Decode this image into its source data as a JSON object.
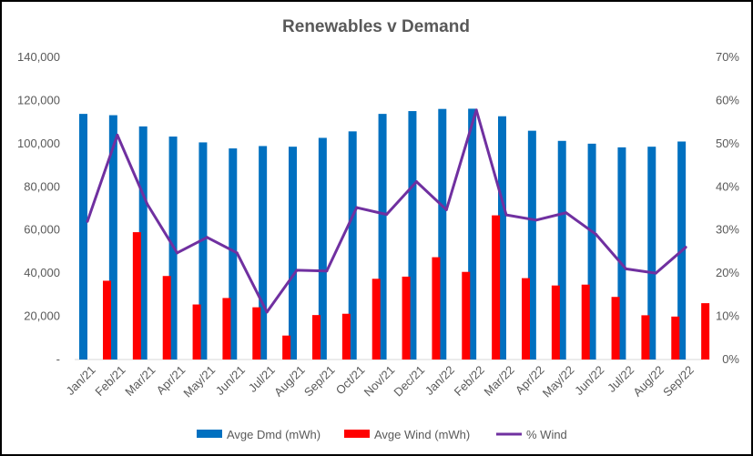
{
  "chart_data": {
    "type": "bar",
    "title": "Renewables v Demand",
    "categories": [
      "Jan/21",
      "Feb/21",
      "Mar/21",
      "Apr/21",
      "May/21",
      "Jun/21",
      "Jul/21",
      "Aug/21",
      "Sep/21",
      "Oct/21",
      "Nov/21",
      "Dec/21",
      "Jan/22",
      "Feb/22",
      "Mar/22",
      "Apr/22",
      "May/22",
      "Jun/22",
      "Jul/22",
      "Aug/22",
      "Sep/22"
    ],
    "series": [
      {
        "name": "Avge Dmd (mWh)",
        "type": "bar",
        "axis": "left",
        "color": "#0070C0",
        "values": [
          113800,
          113200,
          108000,
          103300,
          100600,
          97800,
          98900,
          98600,
          102700,
          105700,
          113800,
          115100,
          116100,
          116200,
          112700,
          106000,
          101300,
          100000,
          98300,
          98600,
          101000
        ]
      },
      {
        "name": "Avge Wind (mWh)",
        "type": "bar",
        "axis": "left",
        "color": "#FF0000",
        "values": [
          36500,
          59000,
          38700,
          25500,
          28500,
          24200,
          11100,
          20600,
          21200,
          37400,
          38400,
          47400,
          40600,
          66800,
          37700,
          34300,
          34700,
          29000,
          20500,
          19900,
          26100
        ]
      },
      {
        "name": "% Wind",
        "type": "line",
        "axis": "right",
        "color": "#7030A0",
        "values": [
          0.32,
          0.52,
          0.36,
          0.247,
          0.283,
          0.247,
          0.11,
          0.207,
          0.205,
          0.352,
          0.336,
          0.412,
          0.347,
          0.578,
          0.335,
          0.323,
          0.34,
          0.29,
          0.21,
          0.2,
          0.26
        ]
      }
    ],
    "y_left": {
      "min": 0,
      "max": 140000,
      "ticks": [
        "-",
        "20,000",
        "40,000",
        "60,000",
        "80,000",
        "100,000",
        "120,000",
        "140,000"
      ]
    },
    "y_right": {
      "min": 0,
      "max": 0.7,
      "ticks": [
        "0%",
        "10%",
        "20%",
        "30%",
        "40%",
        "50%",
        "60%",
        "70%"
      ]
    },
    "grid": false,
    "legend_position": "bottom"
  }
}
